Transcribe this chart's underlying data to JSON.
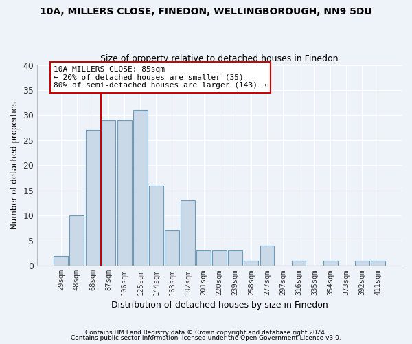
{
  "title1": "10A, MILLERS CLOSE, FINEDON, WELLINGBOROUGH, NN9 5DU",
  "title2": "Size of property relative to detached houses in Finedon",
  "xlabel": "Distribution of detached houses by size in Finedon",
  "ylabel": "Number of detached properties",
  "categories": [
    "29sqm",
    "48sqm",
    "68sqm",
    "87sqm",
    "106sqm",
    "125sqm",
    "144sqm",
    "163sqm",
    "182sqm",
    "201sqm",
    "220sqm",
    "239sqm",
    "258sqm",
    "277sqm",
    "297sqm",
    "316sqm",
    "335sqm",
    "354sqm",
    "373sqm",
    "392sqm",
    "411sqm"
  ],
  "values": [
    2,
    10,
    27,
    29,
    29,
    31,
    16,
    7,
    13,
    3,
    3,
    3,
    1,
    4,
    0,
    1,
    0,
    1,
    0,
    1,
    1
  ],
  "bar_color": "#c9d9e8",
  "bar_edge_color": "#6a9cbf",
  "vline_color": "#cc0000",
  "annotation_box_text": "10A MILLERS CLOSE: 85sqm\n← 20% of detached houses are smaller (35)\n80% of semi-detached houses are larger (143) →",
  "annotation_box_color": "#cc0000",
  "annotation_bg": "#ffffff",
  "ylim": [
    0,
    40
  ],
  "yticks": [
    0,
    5,
    10,
    15,
    20,
    25,
    30,
    35,
    40
  ],
  "footer1": "Contains HM Land Registry data © Crown copyright and database right 2024.",
  "footer2": "Contains public sector information licensed under the Open Government Licence v3.0.",
  "bg_color": "#eef2f9",
  "grid_color": "#ffffff"
}
